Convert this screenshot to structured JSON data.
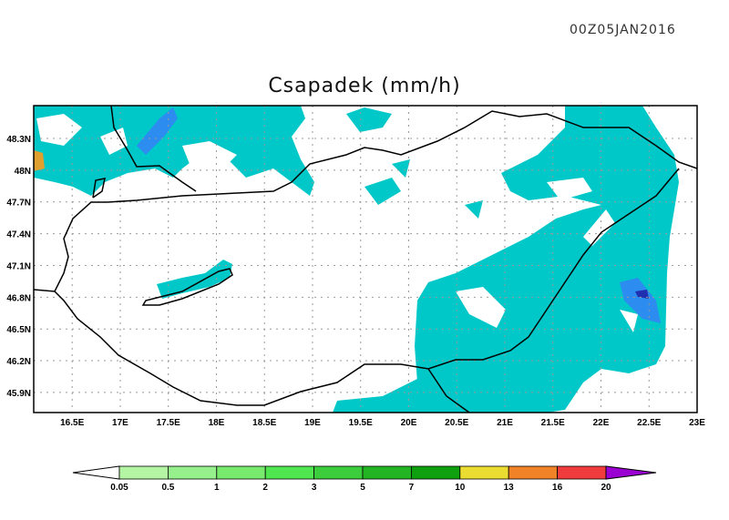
{
  "timestamp": "00Z05JAN2016",
  "title": "Csapadek (mm/h)",
  "map": {
    "lon_range": [
      16.1,
      23.0
    ],
    "lat_range": [
      45.71,
      48.61
    ],
    "lon_ticks": [
      "16.5E",
      "17E",
      "17.5E",
      "18E",
      "18.5E",
      "19E",
      "19.5E",
      "20E",
      "20.5E",
      "21E",
      "21.5E",
      "22E",
      "22.5E",
      "23E"
    ],
    "lat_ticks": [
      "48.3N",
      "48N",
      "47.7N",
      "47.4N",
      "47.1N",
      "46.8N",
      "46.5N",
      "46.2N",
      "45.9N"
    ],
    "grid": true,
    "colors": {
      "shade_low": "#00c8c8",
      "shade_mid": "#2c8cf0",
      "shade_high": "#1f2fb0",
      "shade_orange": "#e0a030"
    }
  },
  "colorbar": {
    "labels": [
      "0.05",
      "0.5",
      "1",
      "2",
      "3",
      "5",
      "7",
      "10",
      "13",
      "16",
      "20"
    ],
    "colors": [
      "#b4f5a4",
      "#96f08c",
      "#78eb6e",
      "#50e650",
      "#3ccd3c",
      "#23b423",
      "#0fa00f",
      "#ebdc32",
      "#f08228",
      "#f03c3c",
      "#9b00d2"
    ]
  }
}
